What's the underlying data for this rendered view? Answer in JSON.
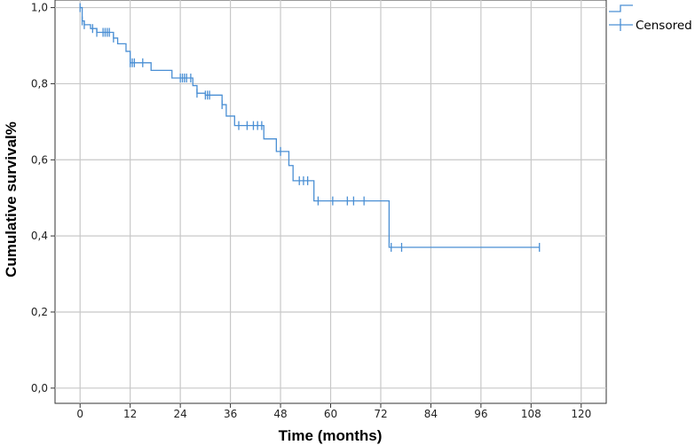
{
  "chart_data": {
    "type": "line",
    "xlabel": "Time (months)",
    "ylabel": "Cumulative survival%",
    "xlim": [
      -6,
      126
    ],
    "ylim": [
      -0.04,
      1.02
    ],
    "x_ticks": [
      0,
      12,
      24,
      36,
      48,
      60,
      72,
      84,
      96,
      108,
      120
    ],
    "x_tick_labels": [
      "0",
      "12",
      "24",
      "36",
      "48",
      "60",
      "72",
      "84",
      "96",
      "108",
      "120"
    ],
    "y_ticks": [
      0.0,
      0.2,
      0.4,
      0.6,
      0.8,
      1.0
    ],
    "y_tick_labels": [
      "0,0",
      "0,2",
      "0,4",
      "0,6",
      "0,8",
      "1,0"
    ],
    "grid": true,
    "legend_position": "top-right",
    "legend": [
      "",
      "Censored"
    ],
    "line_color": "#4a8fd4",
    "series": [
      {
        "kind": "survival-step",
        "x": [
          0,
          0.5,
          1,
          2.5,
          4,
          8,
          9,
          11,
          12,
          17,
          22,
          27,
          28,
          30,
          34,
          35,
          37,
          44,
          47,
          50,
          51,
          52,
          56,
          74,
          110
        ],
        "y": [
          1.0,
          0.965,
          0.955,
          0.945,
          0.935,
          0.92,
          0.905,
          0.885,
          0.855,
          0.835,
          0.815,
          0.795,
          0.775,
          0.77,
          0.745,
          0.715,
          0.69,
          0.655,
          0.622,
          0.585,
          0.545,
          0.545,
          0.492,
          0.37,
          0.37
        ]
      },
      {
        "name": "Censored",
        "kind": "censored-marks",
        "x": [
          0,
          0.5,
          1,
          3,
          4,
          5.5,
          6,
          6.5,
          7,
          8,
          12,
          12.5,
          13,
          15,
          24,
          24.5,
          25,
          25.5,
          26.5,
          28,
          30,
          30.5,
          31,
          34,
          38,
          40,
          41.5,
          42.5,
          43.5,
          48,
          52.5,
          53.5,
          54.5,
          57,
          60.5,
          64,
          65.5,
          68,
          74.5,
          77,
          110
        ],
        "y": [
          1.0,
          0.965,
          0.955,
          0.945,
          0.935,
          0.935,
          0.935,
          0.935,
          0.935,
          0.92,
          0.855,
          0.855,
          0.855,
          0.855,
          0.815,
          0.815,
          0.815,
          0.815,
          0.815,
          0.775,
          0.77,
          0.77,
          0.77,
          0.745,
          0.69,
          0.69,
          0.69,
          0.69,
          0.69,
          0.622,
          0.545,
          0.545,
          0.545,
          0.492,
          0.492,
          0.492,
          0.492,
          0.492,
          0.37,
          0.37,
          0.37
        ]
      }
    ]
  }
}
